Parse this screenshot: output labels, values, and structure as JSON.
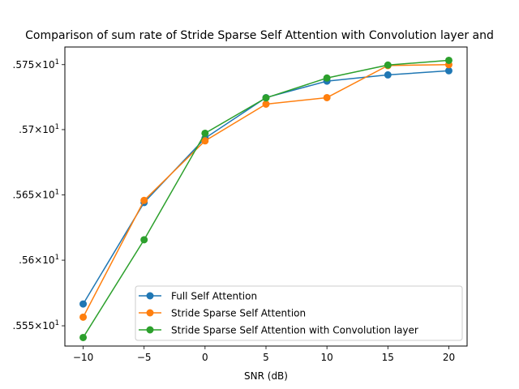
{
  "chart_data": {
    "type": "line",
    "title": "Comparison of sum rate of Stride Sparse Self Attention with Convolution layer and",
    "xlabel": "SNR (dB)",
    "ylabel": "",
    "x": [
      -10,
      -5,
      0,
      5,
      10,
      15,
      20
    ],
    "xticks": [
      -10,
      -5,
      0,
      5,
      10,
      15,
      20
    ],
    "xtick_labels": [
      "−10",
      "−5",
      "0",
      "5",
      "10",
      "15",
      "20"
    ],
    "xlim": [
      -11.5,
      21.5
    ],
    "yscale": "log",
    "yticks": [
      15.55,
      15.6,
      15.65,
      15.7,
      15.75
    ],
    "ytick_labels": [
      {
        "prefix": ".555×10",
        "exp": "1"
      },
      {
        "prefix": ".56×10",
        "exp": "1"
      },
      {
        "prefix": ".565×10",
        "exp": "1"
      },
      {
        "prefix": ".57×10",
        "exp": "1"
      },
      {
        "prefix": ".575×10",
        "exp": "1"
      }
    ],
    "ylim": [
      15.5346,
      15.7636
    ],
    "grid": false,
    "legend_position": "lower-right",
    "series": [
      {
        "name": "Full Self Attention",
        "color": "#1f77b4",
        "values": [
          15.5666,
          15.6441,
          15.6934,
          15.7246,
          15.7373,
          15.7421,
          15.7453
        ]
      },
      {
        "name": "Stride Sparse Self Attention",
        "color": "#ff7f0e",
        "values": [
          15.5566,
          15.6457,
          15.6914,
          15.7196,
          15.7246,
          15.7493,
          15.75
        ]
      },
      {
        "name": "Stride Sparse Self Attention with Convolution layer",
        "color": "#2ca02c",
        "values": [
          15.5411,
          15.6156,
          15.6972,
          15.7244,
          15.7397,
          15.7497,
          15.7533
        ]
      }
    ]
  }
}
